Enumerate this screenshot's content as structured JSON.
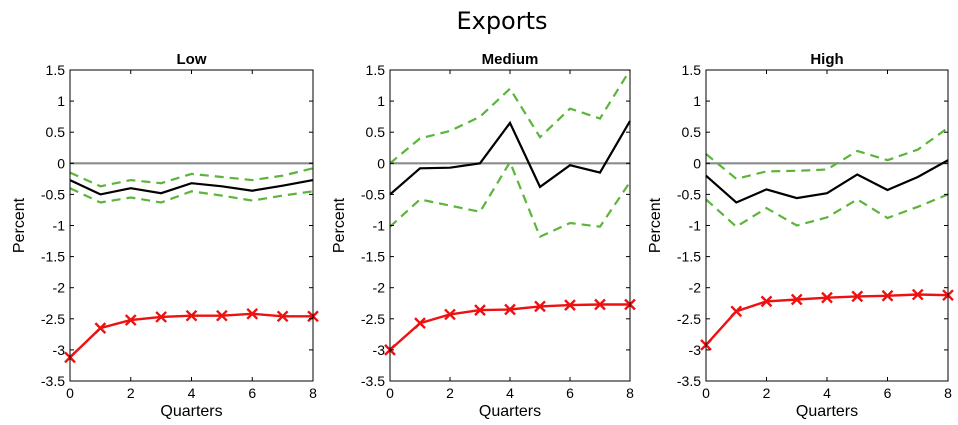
{
  "figure": {
    "title": "Exports"
  },
  "colors": {
    "point_estimate": "#000000",
    "confidence_band": "#5bb53a",
    "zero_line": "#8c8c8c",
    "comparison": "#ee1111"
  },
  "chart_data": [
    {
      "type": "line",
      "title": "Low",
      "xlabel": "Quarters",
      "ylabel": "Percent",
      "xlim": [
        0,
        8
      ],
      "ylim": [
        -3.5,
        1.5
      ],
      "xticks": [
        "0",
        "2",
        "4",
        "6",
        "8"
      ],
      "yticks": [
        "-3.5",
        "-3",
        "-2.5",
        "-2",
        "-1.5",
        "-1",
        "-0.5",
        "0",
        "0.5",
        "1",
        "1.5"
      ],
      "grid": false,
      "legend": "none",
      "x": [
        0,
        1,
        2,
        3,
        4,
        5,
        6,
        7,
        8
      ],
      "series": [
        {
          "role": "upper-band",
          "style": "dashed-green",
          "values": [
            -0.15,
            -0.37,
            -0.27,
            -0.32,
            -0.17,
            -0.22,
            -0.27,
            -0.2,
            -0.08
          ]
        },
        {
          "role": "lower-band",
          "style": "dashed-green",
          "values": [
            -0.4,
            -0.63,
            -0.55,
            -0.63,
            -0.45,
            -0.52,
            -0.6,
            -0.52,
            -0.45
          ]
        },
        {
          "role": "point-estimate",
          "style": "solid-black",
          "values": [
            -0.27,
            -0.5,
            -0.4,
            -0.48,
            -0.32,
            -0.37,
            -0.44,
            -0.36,
            -0.27
          ]
        },
        {
          "role": "comparison",
          "style": "red-x-markers",
          "values": [
            -3.12,
            -2.65,
            -2.52,
            -2.47,
            -2.45,
            -2.45,
            -2.42,
            -2.46,
            -2.46
          ]
        }
      ],
      "reference_line": 0
    },
    {
      "type": "line",
      "title": "Medium",
      "xlabel": "Quarters",
      "ylabel": "Percent",
      "xlim": [
        0,
        8
      ],
      "ylim": [
        -3.5,
        1.5
      ],
      "xticks": [
        "0",
        "2",
        "4",
        "6",
        "8"
      ],
      "yticks": [
        "-3.5",
        "-3",
        "-2.5",
        "-2",
        "-1.5",
        "-1",
        "-0.5",
        "0",
        "0.5",
        "1",
        "1.5"
      ],
      "grid": false,
      "legend": "none",
      "x": [
        0,
        1,
        2,
        3,
        4,
        5,
        6,
        7,
        8
      ],
      "series": [
        {
          "role": "upper-band",
          "style": "dashed-green",
          "values": [
            0.0,
            0.4,
            0.52,
            0.75,
            1.2,
            0.42,
            0.88,
            0.72,
            1.5
          ]
        },
        {
          "role": "lower-band",
          "style": "dashed-green",
          "values": [
            -1.02,
            -0.58,
            -0.68,
            -0.78,
            0.02,
            -1.18,
            -0.96,
            -1.02,
            -0.3
          ]
        },
        {
          "role": "point-estimate",
          "style": "solid-black",
          "values": [
            -0.5,
            -0.08,
            -0.07,
            0.0,
            0.65,
            -0.38,
            -0.03,
            -0.15,
            0.68
          ]
        },
        {
          "role": "comparison",
          "style": "red-x-markers",
          "values": [
            -3.0,
            -2.57,
            -2.43,
            -2.36,
            -2.35,
            -2.3,
            -2.28,
            -2.27,
            -2.27
          ]
        }
      ],
      "reference_line": 0
    },
    {
      "type": "line",
      "title": "High",
      "xlabel": "Quarters",
      "ylabel": "Percent",
      "xlim": [
        0,
        8
      ],
      "ylim": [
        -3.5,
        1.5
      ],
      "xticks": [
        "0",
        "2",
        "4",
        "6",
        "8"
      ],
      "yticks": [
        "-3.5",
        "-3",
        "-2.5",
        "-2",
        "-1.5",
        "-1",
        "-0.5",
        "0",
        "0.5",
        "1",
        "1.5"
      ],
      "grid": false,
      "legend": "none",
      "x": [
        0,
        1,
        2,
        3,
        4,
        5,
        6,
        7,
        8
      ],
      "series": [
        {
          "role": "upper-band",
          "style": "dashed-green",
          "values": [
            0.15,
            -0.25,
            -0.13,
            -0.12,
            -0.1,
            0.2,
            0.05,
            0.22,
            0.57
          ]
        },
        {
          "role": "lower-band",
          "style": "dashed-green",
          "values": [
            -0.58,
            -1.02,
            -0.72,
            -1.0,
            -0.87,
            -0.58,
            -0.88,
            -0.7,
            -0.5
          ]
        },
        {
          "role": "point-estimate",
          "style": "solid-black",
          "values": [
            -0.2,
            -0.63,
            -0.42,
            -0.56,
            -0.48,
            -0.18,
            -0.43,
            -0.22,
            0.05
          ]
        },
        {
          "role": "comparison",
          "style": "red-x-markers",
          "values": [
            -2.92,
            -2.38,
            -2.22,
            -2.19,
            -2.16,
            -2.14,
            -2.13,
            -2.11,
            -2.12
          ]
        }
      ],
      "reference_line": 0
    }
  ]
}
